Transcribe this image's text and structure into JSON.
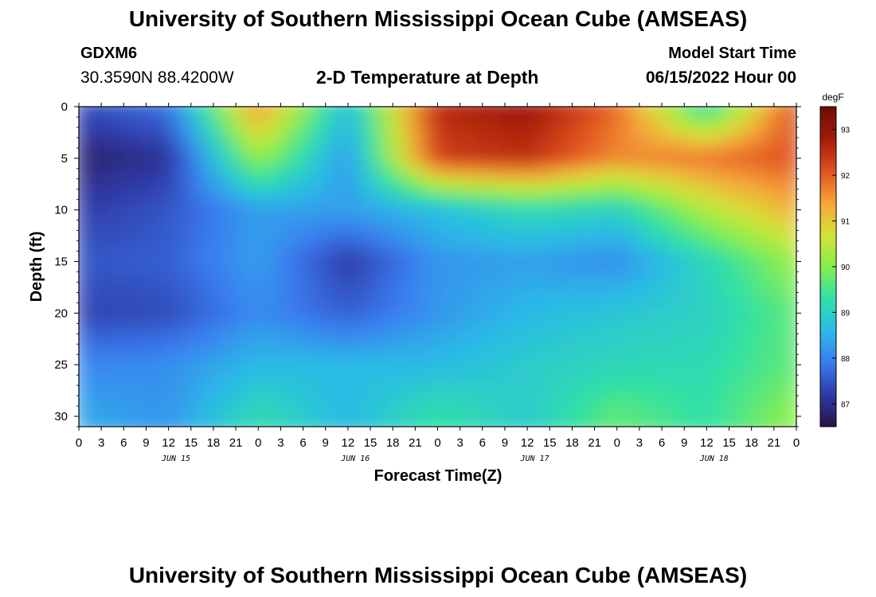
{
  "header": {
    "title": "University of Southern Mississippi Ocean Cube (AMSEAS)",
    "station_id": "GDXM6",
    "station_coords": "30.3590N  88.4200W",
    "plot_title": "2-D Temperature at Depth",
    "model_start_label": "Model Start Time",
    "model_start_value": "06/15/2022 Hour 00"
  },
  "footer": {
    "title_repeat": "University of Southern Mississippi Ocean Cube (AMSEAS)"
  },
  "colors": {
    "colormap": [
      "#2a1347",
      "#2e3aa5",
      "#3b7bf0",
      "#2bbbe6",
      "#2fe0a8",
      "#86ee4c",
      "#d6e238",
      "#f6a43a",
      "#e0501f",
      "#a31a08",
      "#6b0d04"
    ]
  },
  "chart_data": {
    "type": "heatmap",
    "xlabel": "Forecast Time(Z)",
    "ylabel": "Depth (ft)",
    "x_hours": [
      0,
      12,
      24,
      36,
      48,
      60,
      72,
      84,
      96
    ],
    "y_depth_ft": [
      0,
      5,
      10,
      15,
      20,
      25,
      30
    ],
    "ylim": [
      0,
      31
    ],
    "xlim": [
      0,
      96
    ],
    "x_tick_labels": [
      "0",
      "3",
      "6",
      "9",
      "12",
      "15",
      "18",
      "21",
      "0",
      "3",
      "6",
      "9",
      "12",
      "15",
      "18",
      "21",
      "0",
      "3",
      "6",
      "9",
      "12",
      "15",
      "18",
      "21",
      "0",
      "3",
      "6",
      "9",
      "12",
      "15",
      "18",
      "21",
      "0"
    ],
    "y_tick_labels": [
      "0",
      "5",
      "10",
      "15",
      "20",
      "25",
      "30"
    ],
    "day_labels": [
      "JUN 15",
      "JUN 16",
      "JUN 17",
      "JUN 18"
    ],
    "colorbar": {
      "unit": "degF",
      "ticks": [
        "87",
        "88",
        "89",
        "90",
        "91",
        "92",
        "93"
      ],
      "range": [
        86.5,
        93.5
      ]
    },
    "values_degF": [
      [
        87.4,
        87.8,
        91.6,
        88.6,
        92.6,
        92.9,
        91.9,
        89.1,
        92.3
      ],
      [
        86.8,
        87.1,
        90.2,
        88.2,
        92.3,
        92.5,
        91.6,
        91.8,
        92.1
      ],
      [
        87.2,
        87.5,
        88.3,
        88.3,
        88.7,
        89.2,
        89.0,
        90.4,
        91.3
      ],
      [
        87.5,
        87.6,
        88.3,
        87.2,
        88.2,
        88.3,
        88.1,
        89.1,
        90.2
      ],
      [
        87.3,
        87.4,
        88.1,
        87.6,
        88.2,
        88.6,
        88.8,
        89.0,
        89.7
      ],
      [
        88.0,
        88.1,
        88.6,
        88.6,
        88.6,
        88.9,
        89.1,
        89.2,
        89.7
      ],
      [
        88.4,
        88.2,
        89.2,
        88.6,
        89.3,
        88.9,
        89.7,
        89.3,
        90.1
      ]
    ]
  }
}
